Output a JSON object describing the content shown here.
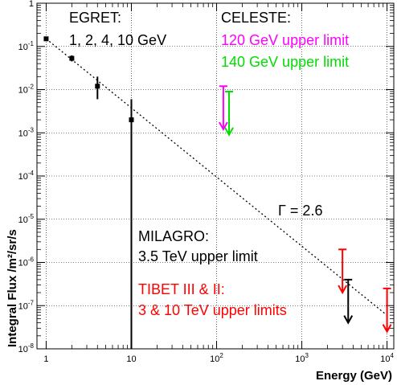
{
  "chart_data": {
    "type": "scatter",
    "xlabel": "Energy (GeV)",
    "ylabel": "Integral Flux /m²/sr/s",
    "xscale": "log",
    "yscale": "log",
    "xlim": [
      0.78,
      12000
    ],
    "ylim": [
      1e-08,
      1
    ],
    "x_ticks": [
      {
        "value": 1,
        "label": "1"
      },
      {
        "value": 10,
        "label": "10"
      },
      {
        "value": 100,
        "base": "10",
        "exp": "2"
      },
      {
        "value": 1000,
        "base": "10",
        "exp": "3"
      },
      {
        "value": 10000,
        "base": "10",
        "exp": "4"
      }
    ],
    "y_ticks": [
      {
        "value": 1e-08,
        "base": "10",
        "exp": "-8"
      },
      {
        "value": 1e-07,
        "base": "10",
        "exp": "-7"
      },
      {
        "value": 1e-06,
        "base": "10",
        "exp": "-6"
      },
      {
        "value": 1e-05,
        "base": "10",
        "exp": "-5"
      },
      {
        "value": 0.0001,
        "base": "10",
        "exp": "-4"
      },
      {
        "value": 0.001,
        "base": "10",
        "exp": "-3"
      },
      {
        "value": 0.01,
        "base": "10",
        "exp": "-2"
      },
      {
        "value": 0.1,
        "base": "10",
        "exp": "-1"
      },
      {
        "value": 1,
        "label": "1"
      }
    ],
    "grid": true,
    "points": [
      {
        "x": 1,
        "y": 0.15,
        "ylo": 0.14,
        "yhi": 0.16,
        "color": "#000000"
      },
      {
        "x": 2,
        "y": 0.053,
        "ylo": 0.045,
        "yhi": 0.062,
        "color": "#000000"
      },
      {
        "x": 4,
        "y": 0.012,
        "ylo": 0.006,
        "yhi": 0.02,
        "color": "#000000"
      },
      {
        "x": 10,
        "y": 0.002,
        "ylo": 1e-08,
        "yhi": 0.006,
        "color": "#000000"
      }
    ],
    "upper_limits": [
      {
        "x": 120,
        "y_top": 0.012,
        "y_bottom": 0.0012,
        "color": "#ff00ff"
      },
      {
        "x": 140,
        "y_top": 0.009,
        "y_bottom": 0.0009,
        "color": "#00dd00"
      },
      {
        "x": 3000,
        "y_top": 2e-06,
        "y_bottom": 2e-07,
        "color": "#ff0000"
      },
      {
        "x": 3500,
        "y_top": 4e-07,
        "y_bottom": 4e-08,
        "color": "#000000"
      },
      {
        "x": 10000,
        "y_top": 2.5e-07,
        "y_bottom": 2.5e-08,
        "color": "#ff0000"
      }
    ],
    "power_law_fit": {
      "x_from": 1,
      "x_to": 10000,
      "y_at_1": 0.15,
      "index": 2.6,
      "style": "dotted"
    },
    "annotations": [
      {
        "text": "EGRET:",
        "color": "#000000"
      },
      {
        "text": "1, 2, 4, 10 GeV",
        "color": "#000000"
      },
      {
        "text": "CELESTE:",
        "color": "#000000"
      },
      {
        "text": "120 GeV upper limit",
        "color": "#ff00ff"
      },
      {
        "text": "140 GeV upper limit",
        "color": "#00dd00"
      },
      {
        "text": "Γ = 2.6",
        "color": "#000000"
      },
      {
        "text": "MILAGRO:",
        "color": "#000000"
      },
      {
        "text": "3.5 TeV upper limit",
        "color": "#000000"
      },
      {
        "text": "TIBET III & II:",
        "color": "#ff0000"
      },
      {
        "text": "3 & 10 TeV upper limits",
        "color": "#ff0000"
      }
    ]
  }
}
